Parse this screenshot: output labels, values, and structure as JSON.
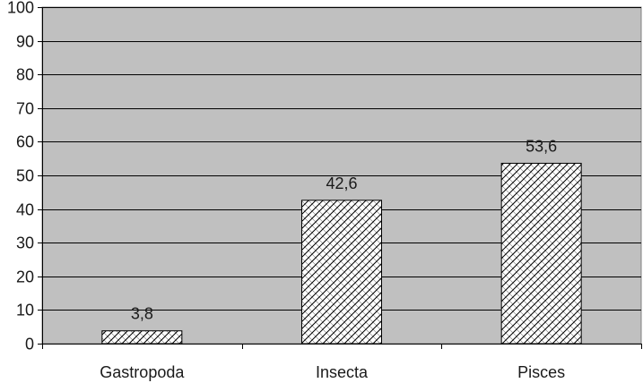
{
  "chart_data": {
    "type": "bar",
    "categories": [
      "Gastropoda",
      "Insecta",
      "Pisces"
    ],
    "values": [
      3.8,
      42.6,
      53.6
    ],
    "data_labels": [
      "3,8",
      "42,6",
      "53,6"
    ],
    "ylim": [
      0,
      100
    ],
    "yticks": [
      0,
      10,
      20,
      30,
      40,
      50,
      60,
      70,
      80,
      90,
      100
    ],
    "grid": true,
    "legend": "none",
    "colors": {
      "plot_background": "#c0c0c0",
      "gridline": "#000000",
      "bar_fill": "#ffffff",
      "bar_hatch": "#000000"
    }
  }
}
